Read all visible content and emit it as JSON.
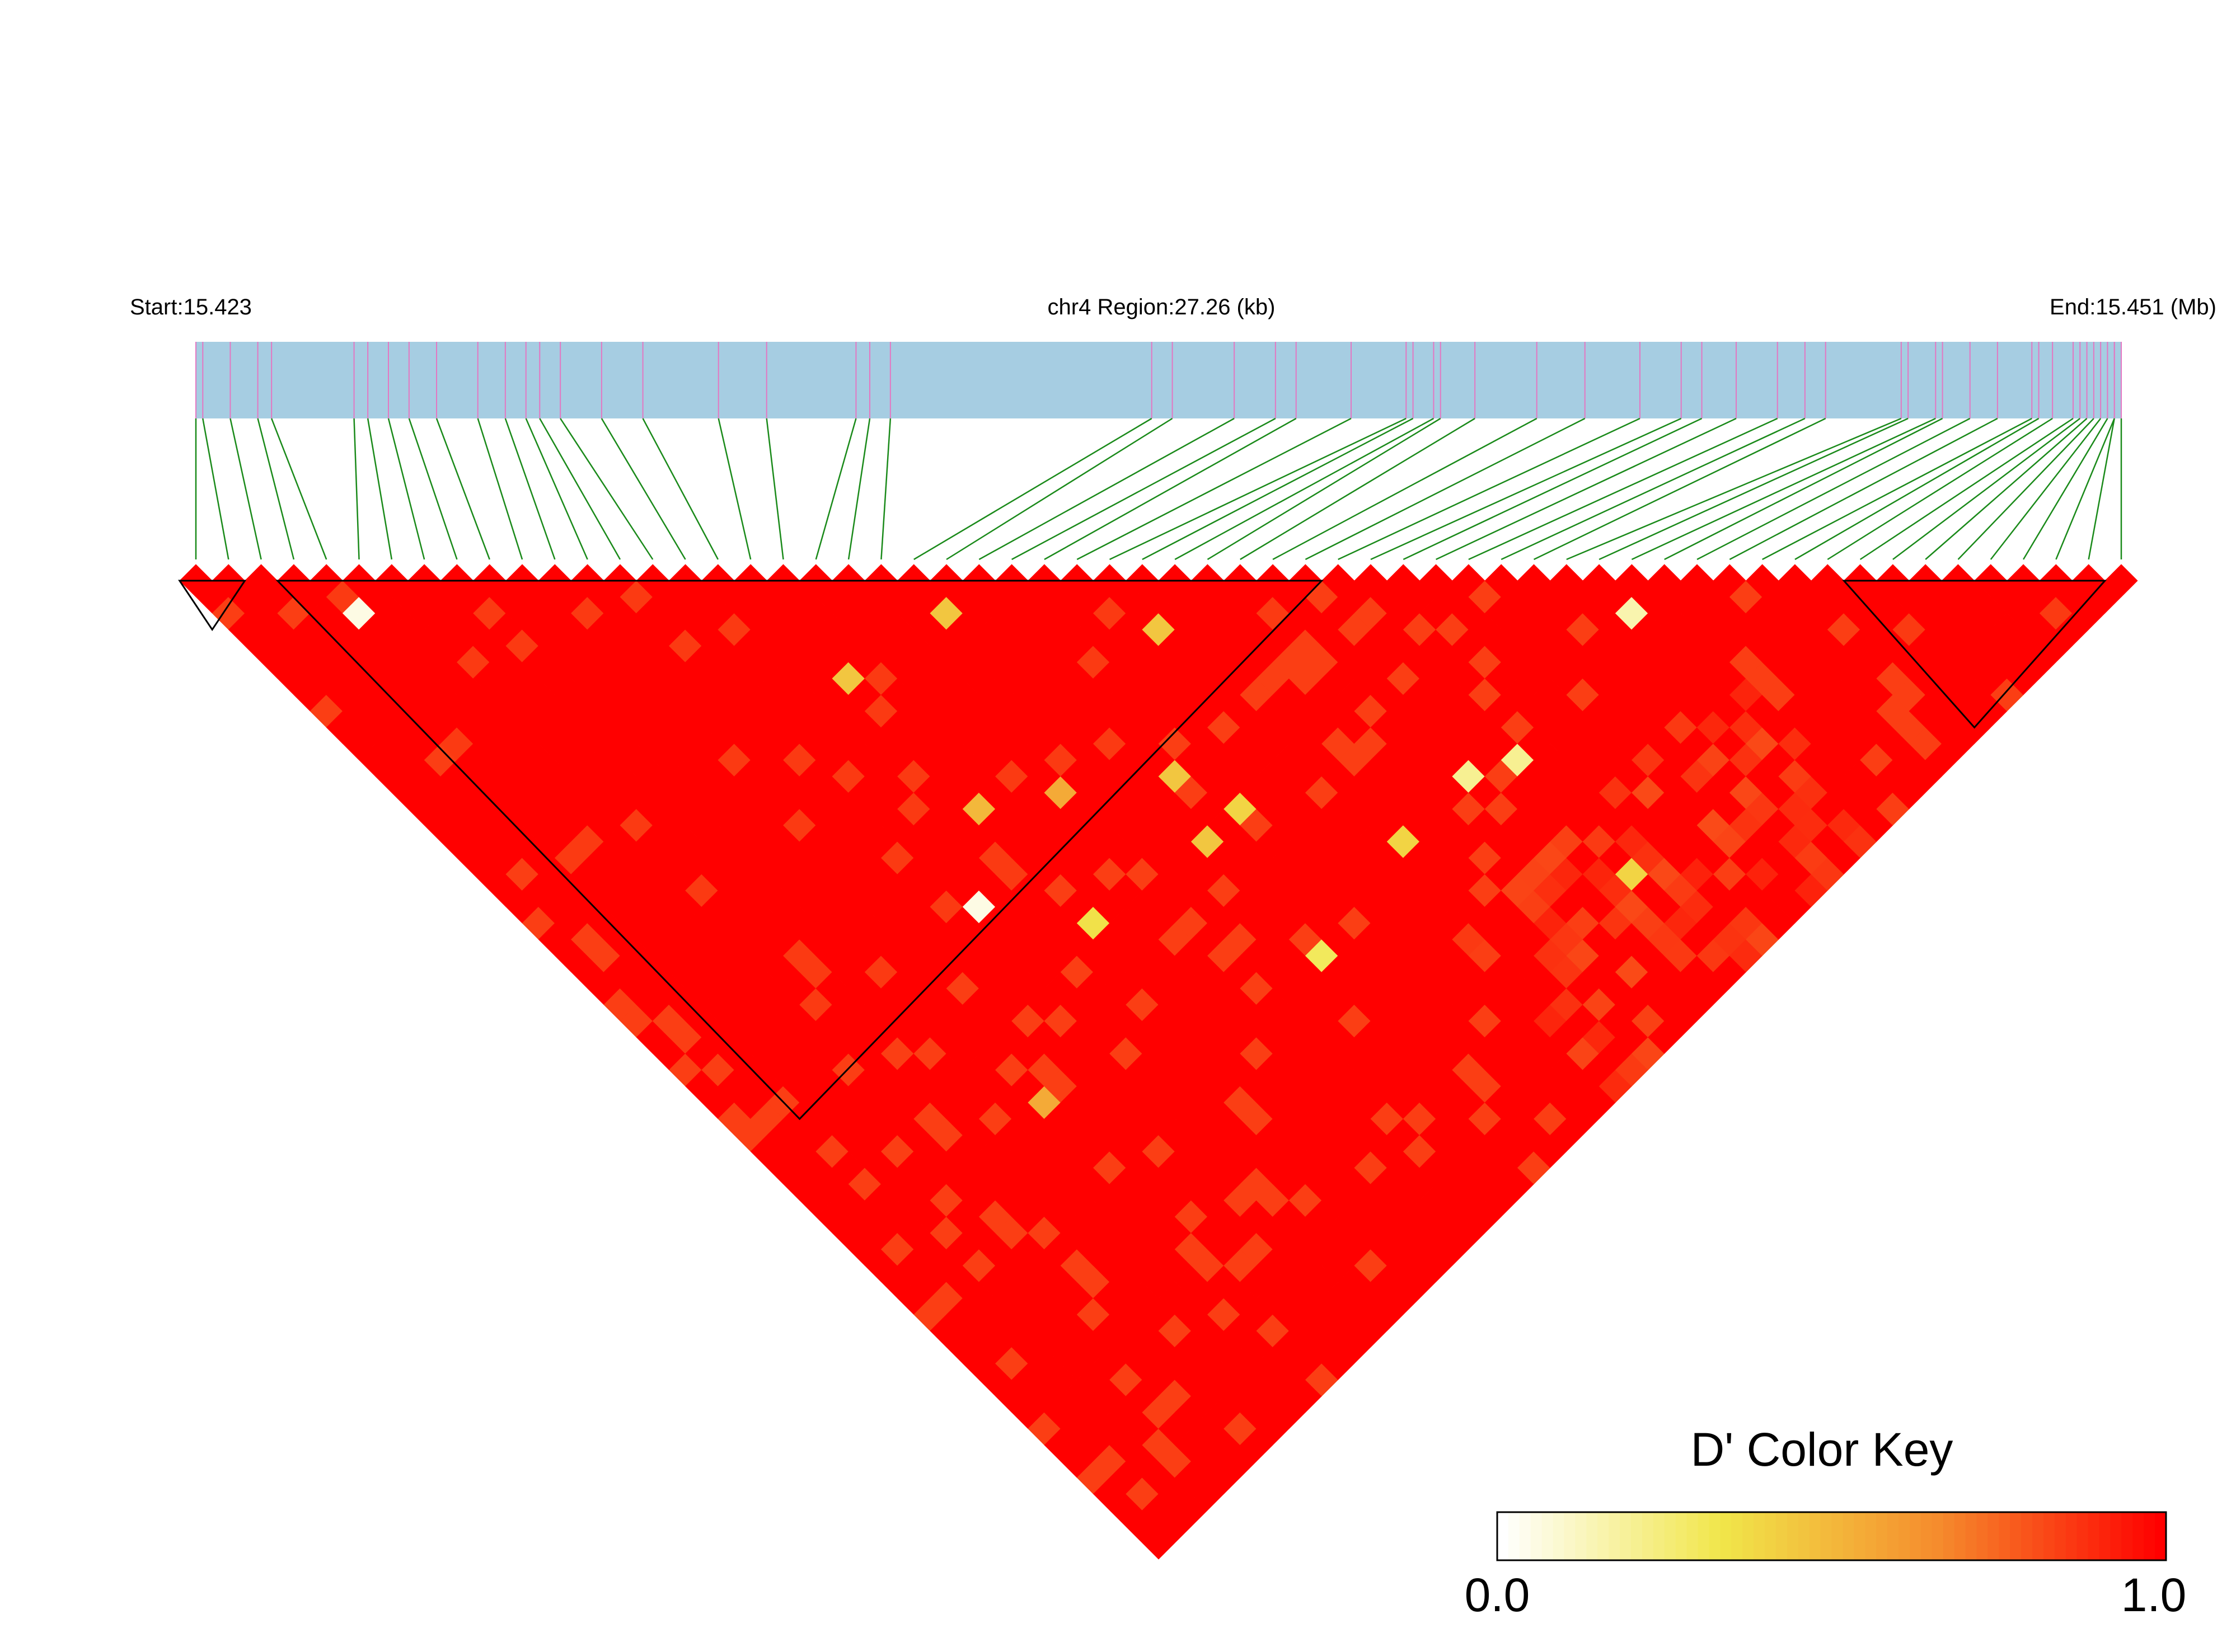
{
  "header": {
    "start_label": "Start:15.423",
    "region_label": "chr4 Region:27.26 (kb)",
    "end_label": "End:15.451 (Mb)"
  },
  "colors": {
    "track": "#a6cde2",
    "tick": "#e377c2",
    "connector": "#1a8a1a",
    "high": "#ff0000",
    "low": "#ffffff",
    "block_outline": "#000000"
  },
  "chart_data": {
    "type": "heatmap",
    "title": "",
    "chromosome": "chr4",
    "region_start_mb": 15.423,
    "region_end_mb": 15.451,
    "region_length_kb": 27.26,
    "n_snps": 60,
    "snp_positions_mb": [
      15.423,
      15.4231,
      15.4235,
      15.4239,
      15.4241,
      15.4253,
      15.4255,
      15.4258,
      15.4261,
      15.4265,
      15.4271,
      15.4275,
      15.4278,
      15.428,
      15.4283,
      15.4289,
      15.4295,
      15.4306,
      15.4313,
      15.4326,
      15.4328,
      15.4331,
      15.4369,
      15.4372,
      15.4381,
      15.4387,
      15.439,
      15.4398,
      15.4406,
      15.4407,
      15.441,
      15.4411,
      15.4416,
      15.4425,
      15.4432,
      15.444,
      15.4446,
      15.4449,
      15.4454,
      15.446,
      15.4464,
      15.4467,
      15.4478,
      15.4479,
      15.4483,
      15.4484,
      15.4488,
      15.4492,
      15.4497,
      15.4498,
      15.45,
      15.4503,
      15.4504,
      15.4505,
      15.4506,
      15.4507,
      15.4508,
      15.4509,
      15.4509,
      15.451
    ],
    "haplotype_blocks": [
      [
        0,
        1
      ],
      [
        3,
        34
      ],
      [
        51,
        58
      ]
    ],
    "low_ld_pairs": [
      {
        "i": 4,
        "j": 6,
        "d": 0.05
      },
      {
        "i": 22,
        "j": 24,
        "d": 0.45
      },
      {
        "i": 28,
        "j": 31,
        "d": 0.45
      },
      {
        "i": 43,
        "j": 45,
        "d": 0.15
      },
      {
        "i": 17,
        "j": 23,
        "d": 0.45
      },
      {
        "i": 35,
        "j": 46,
        "d": 0.2
      },
      {
        "i": 20,
        "j": 33,
        "d": 0.55
      },
      {
        "i": 17,
        "j": 31,
        "d": 0.5
      },
      {
        "i": 33,
        "j": 45,
        "d": 0.2
      },
      {
        "i": 14,
        "j": 34,
        "d": 0.05
      },
      {
        "i": 24,
        "j": 36,
        "d": 0.45
      },
      {
        "i": 23,
        "j": 39,
        "d": 0.45
      },
      {
        "i": 25,
        "j": 39,
        "d": 0.4
      },
      {
        "i": 10,
        "j": 42,
        "d": 0.55
      },
      {
        "i": 23,
        "j": 46,
        "d": 0.3
      },
      {
        "i": 17,
        "j": 38,
        "d": 0.35
      },
      {
        "i": 29,
        "j": 45,
        "d": 0.4
      },
      {
        "i": 35,
        "j": 53,
        "d": 0.4
      }
    ],
    "color_key": {
      "title": "D' Color Key",
      "min_label": "0.0",
      "max_label": "1.0",
      "min": 0.0,
      "max": 1.0,
      "colors": [
        "#ffffff",
        "#f1e64a",
        "#f58a2c",
        "#ff0000"
      ]
    }
  }
}
